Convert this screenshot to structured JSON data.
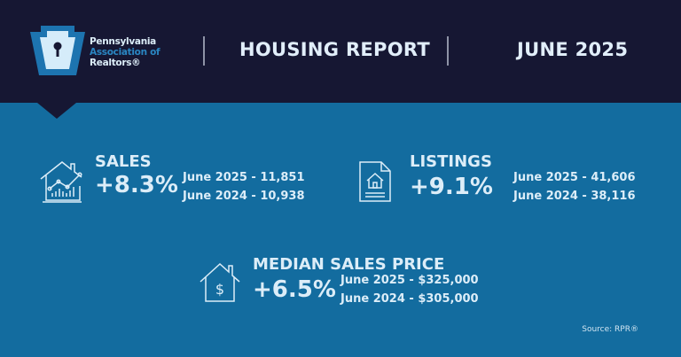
{
  "header": {
    "org_line1": "Pennsylvania",
    "org_line2": "Association of",
    "org_line3": "Realtors®",
    "title": "HOUSING REPORT",
    "period": "JUNE 2025"
  },
  "colors": {
    "header_bg": "#161733",
    "main_bg": "#136c9f",
    "text": "#dcedf8",
    "accent": "#2a86c2"
  },
  "metrics": [
    {
      "label": "SALES",
      "change": "+8.3%",
      "current": "June 2025 - 11,851",
      "previous": "June 2024 - 10,938",
      "icon": "house-chart-icon"
    },
    {
      "label": "LISTINGS",
      "change": "+9.1%",
      "current": "June 2025 - 41,606",
      "previous": "June 2024 - 38,116",
      "icon": "document-house-icon"
    },
    {
      "label": "MEDIAN SALES PRICE",
      "change": "+6.5%",
      "current": "June 2025 - $325,000",
      "previous": "June 2024 - $305,000",
      "icon": "house-dollar-icon"
    }
  ],
  "source": "Source: RPR®"
}
